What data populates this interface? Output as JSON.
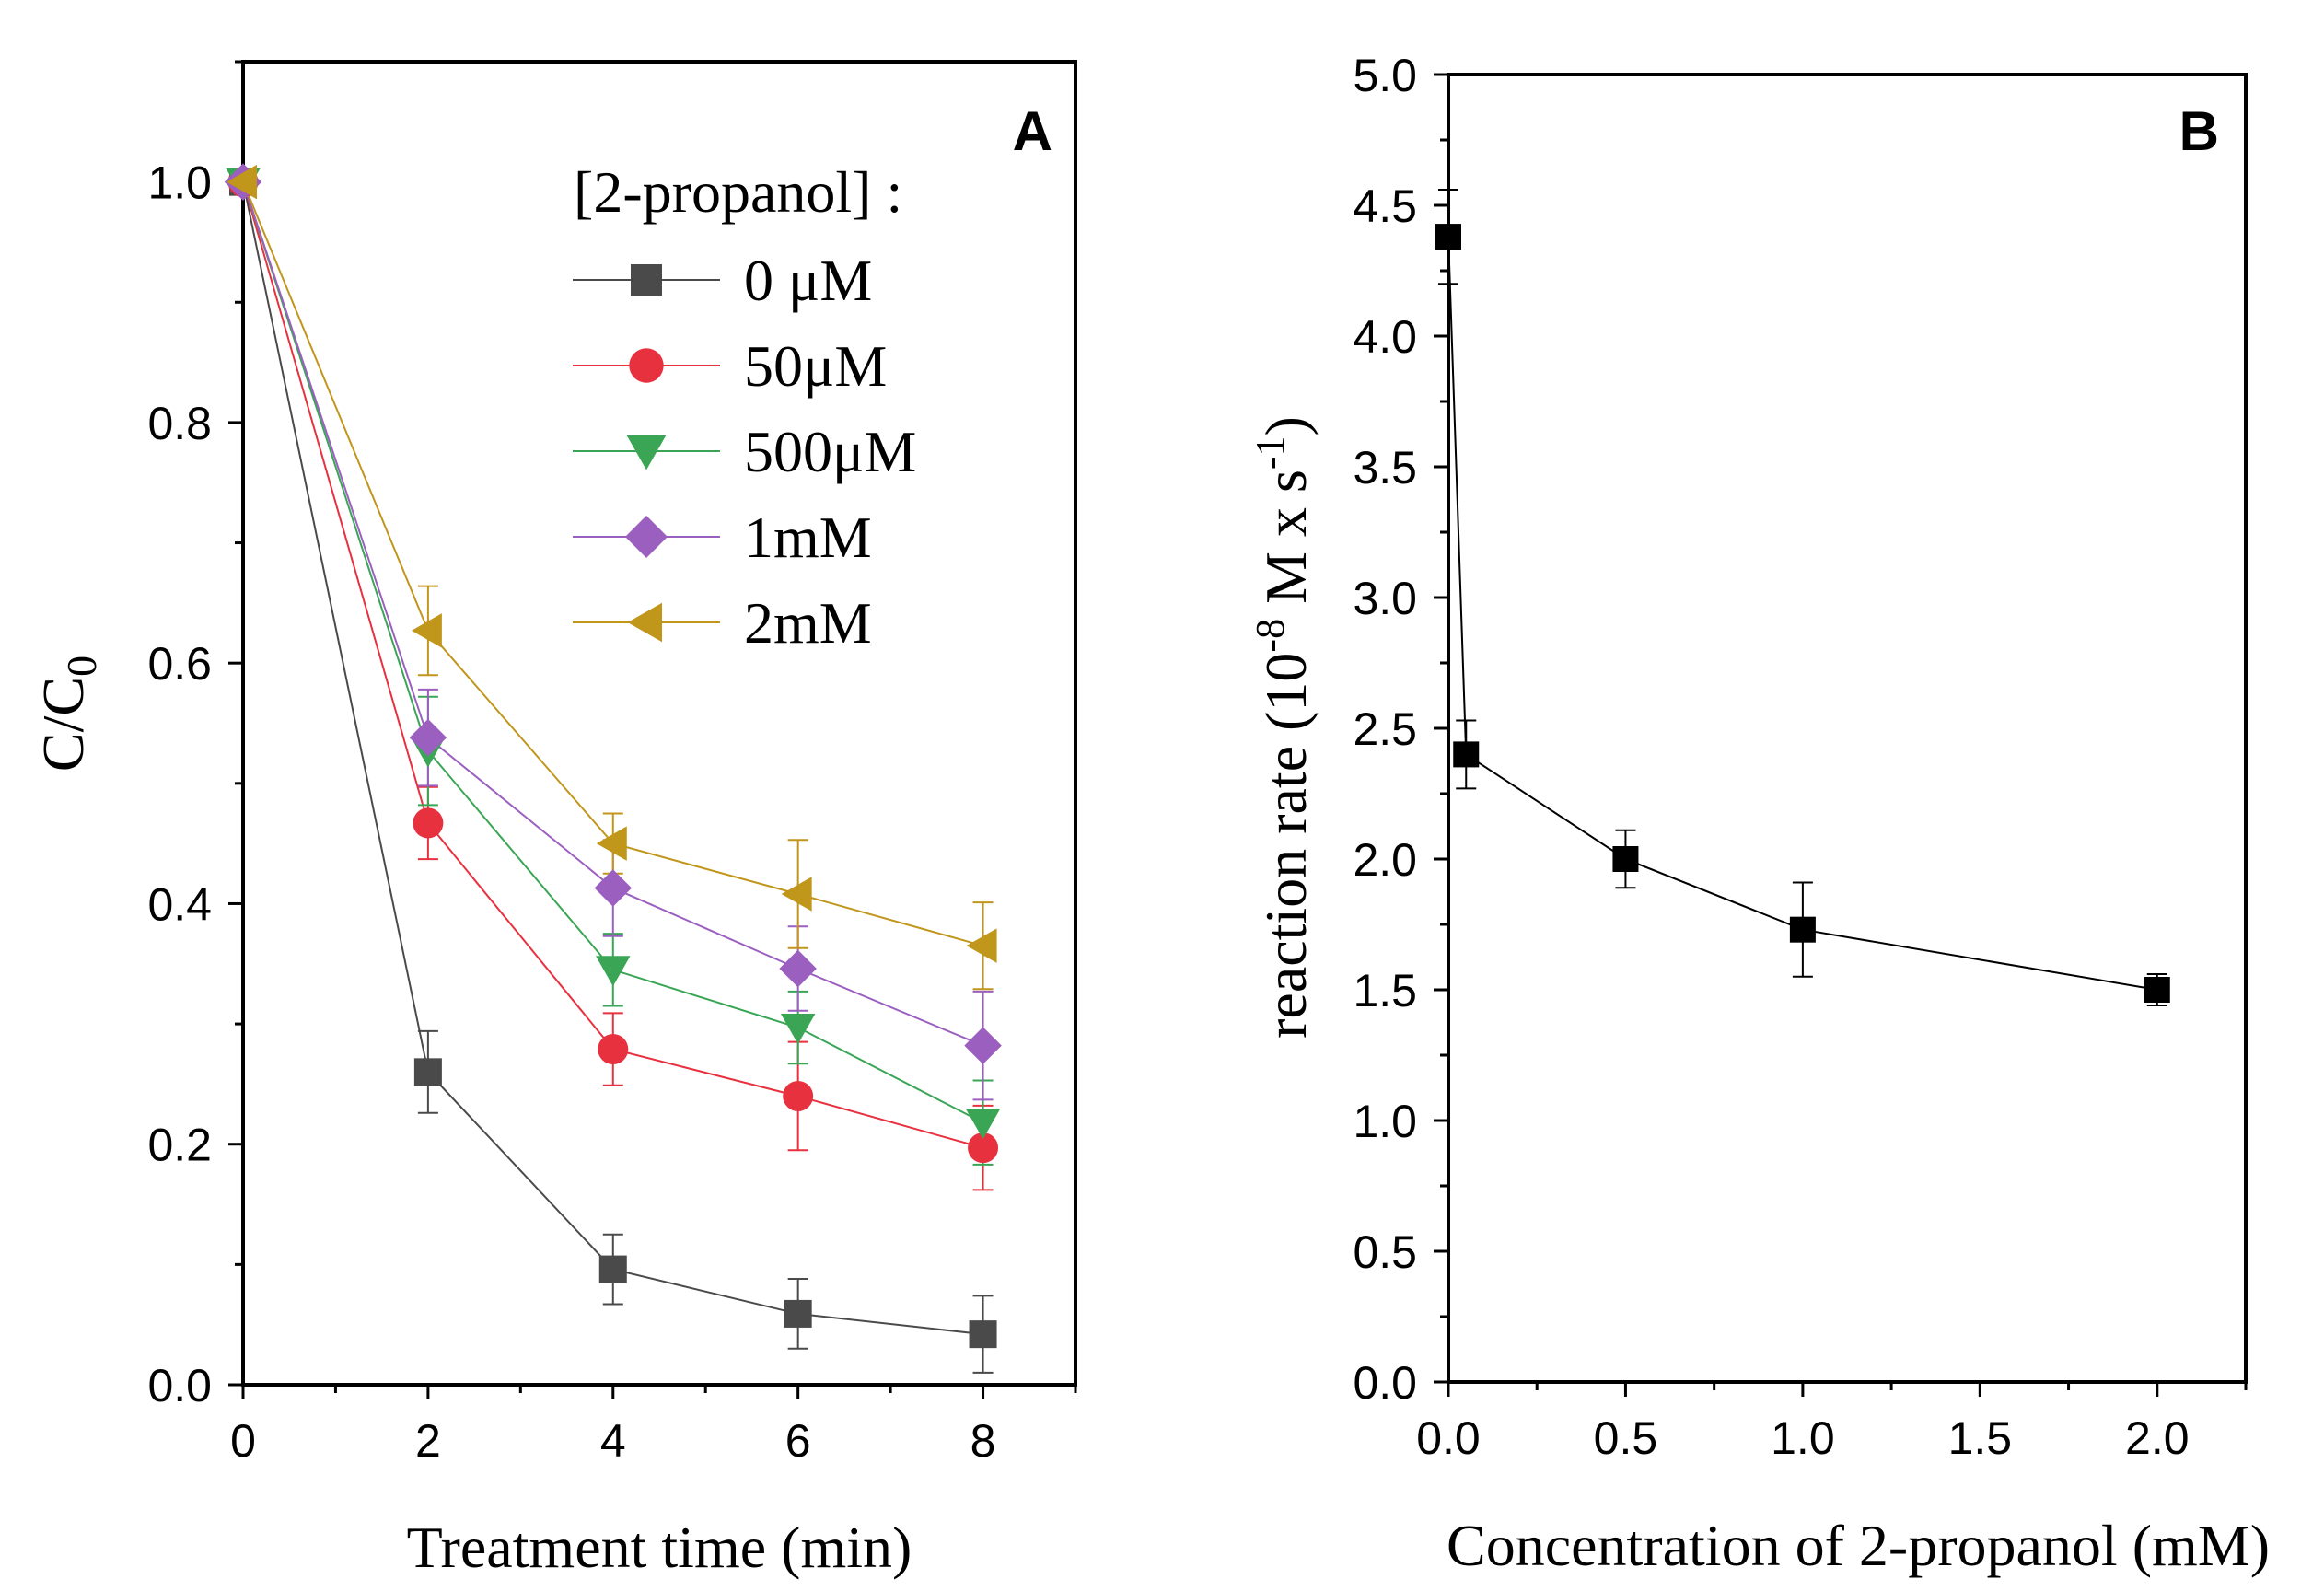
{
  "chart_data": [
    {
      "type": "line",
      "panel_label": "A",
      "title": "",
      "xlabel": "Treatment time (min)",
      "ylabel_main": "C/C",
      "ylabel_sub": "0",
      "xlim": [
        0,
        9
      ],
      "ylim": [
        0,
        1.1
      ],
      "x_ticks": [
        "0",
        "2",
        "4",
        "6",
        "8"
      ],
      "y_ticks": [
        "0.0",
        "0.2",
        "0.4",
        "0.6",
        "0.8",
        "1.0"
      ],
      "legend_title": "[2-propanol] :",
      "legend_position": "top-right",
      "series": [
        {
          "name": "0 μM",
          "color": "#4a4a4a",
          "marker": "square",
          "x": [
            0,
            2,
            4,
            6,
            8
          ],
          "y": [
            1.0,
            0.26,
            0.096,
            0.059,
            0.042
          ],
          "err": [
            0,
            0.034,
            0.029,
            0.029,
            0.032
          ]
        },
        {
          "name": "50μM",
          "color": "#e8313f",
          "marker": "circle",
          "x": [
            0,
            2,
            4,
            6,
            8
          ],
          "y": [
            1.0,
            0.467,
            0.279,
            0.24,
            0.197
          ],
          "err": [
            0,
            0.03,
            0.03,
            0.045,
            0.035
          ]
        },
        {
          "name": "500μM",
          "color": "#3aa655",
          "marker": "triangle-down",
          "x": [
            0,
            2,
            4,
            6,
            8
          ],
          "y": [
            1.0,
            0.527,
            0.345,
            0.297,
            0.218
          ],
          "err": [
            0,
            0.045,
            0.03,
            0.03,
            0.035
          ]
        },
        {
          "name": "1mM",
          "color": "#9b5fc0",
          "marker": "diamond",
          "x": [
            0,
            2,
            4,
            6,
            8
          ],
          "y": [
            1.0,
            0.538,
            0.413,
            0.346,
            0.282
          ],
          "err": [
            0,
            0.04,
            0.04,
            0.035,
            0.045
          ]
        },
        {
          "name": "2mM",
          "color": "#c0961b",
          "marker": "triangle-left",
          "x": [
            0,
            2,
            4,
            6,
            8
          ],
          "y": [
            1.0,
            0.627,
            0.45,
            0.408,
            0.365
          ],
          "err": [
            0,
            0.037,
            0.025,
            0.045,
            0.036
          ]
        }
      ]
    },
    {
      "type": "line",
      "panel_label": "B",
      "title": "",
      "xlabel": "Concentration of 2-propanol (mM)",
      "ylabel_pre": "reaction rate (10",
      "ylabel_sup1": "-8",
      "ylabel_mid": " M x s",
      "ylabel_sup2": "-1",
      "ylabel_post": ")",
      "xlim": [
        0,
        2.25
      ],
      "ylim": [
        0,
        5.0
      ],
      "x_ticks": [
        "0.0",
        "0.5",
        "1.0",
        "1.5",
        "2.0"
      ],
      "y_ticks": [
        "0.0",
        "0.5",
        "1.0",
        "1.5",
        "2.0",
        "2.5",
        "3.0",
        "3.5",
        "4.0",
        "4.5",
        "5.0"
      ],
      "series": [
        {
          "name": "reaction rate",
          "color": "#000000",
          "marker": "square",
          "x": [
            0,
            0.05,
            0.5,
            1.0,
            2.0
          ],
          "y": [
            4.38,
            2.4,
            2.0,
            1.73,
            1.5
          ],
          "err": [
            0.18,
            0.13,
            0.11,
            0.18,
            0.06
          ]
        }
      ]
    }
  ]
}
